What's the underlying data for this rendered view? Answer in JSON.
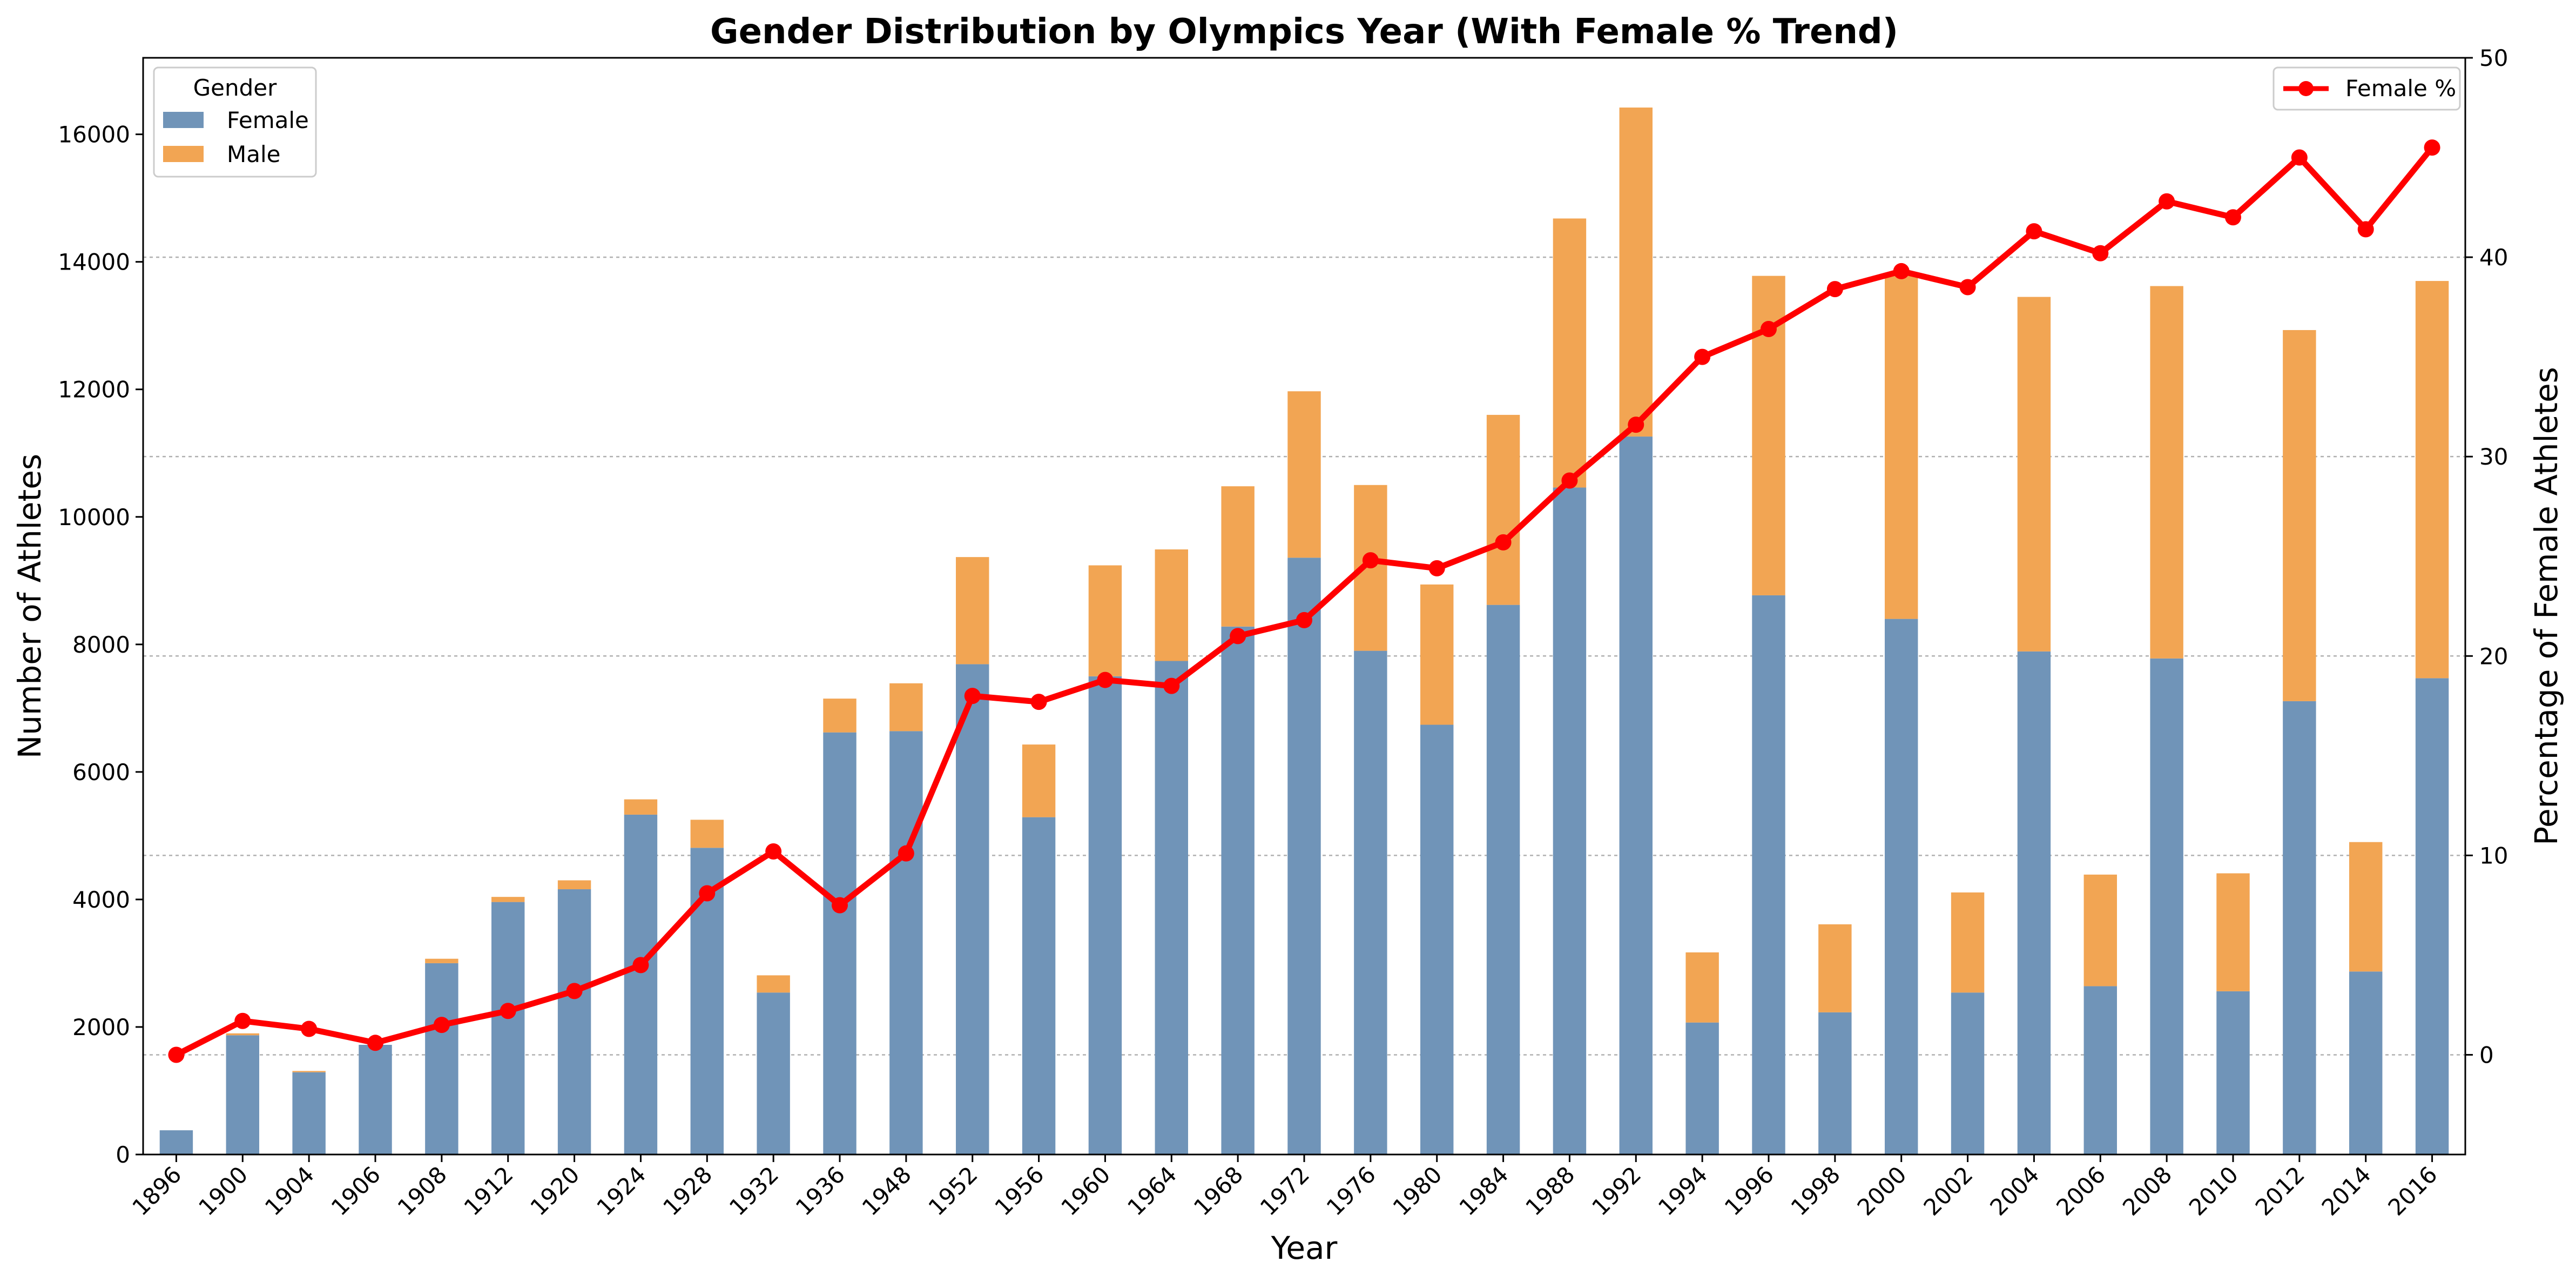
{
  "chart_data": {
    "type": "bar",
    "title": "Gender Distribution by Olympics Year (With Female % Trend)",
    "xlabel": "Year",
    "ylabel": "Number of Athletes",
    "y2label": "Percentage of Female Athletes",
    "ylim": [
      0,
      17200
    ],
    "y2lim": [
      -5,
      50
    ],
    "yticks": [
      0,
      2000,
      4000,
      6000,
      8000,
      10000,
      12000,
      14000,
      16000
    ],
    "y2ticks": [
      0,
      10,
      20,
      30,
      40,
      50
    ],
    "grid": true,
    "categories": [
      "1896",
      "1900",
      "1904",
      "1906",
      "1908",
      "1912",
      "1920",
      "1924",
      "1928",
      "1932",
      "1936",
      "1948",
      "1952",
      "1956",
      "1960",
      "1964",
      "1968",
      "1972",
      "1976",
      "1980",
      "1984",
      "1988",
      "1992",
      "1994",
      "1996",
      "1998",
      "2000",
      "2002",
      "2004",
      "2006",
      "2008",
      "2010",
      "2012",
      "2014",
      "2016"
    ],
    "series": [
      {
        "name": "Female",
        "stack": "gender",
        "color": "#7094b8",
        "values": [
          380,
          1870,
          1290,
          1720,
          3000,
          3960,
          4160,
          5330,
          4810,
          2540,
          6620,
          6640,
          7690,
          5290,
          7500,
          7740,
          8280,
          9360,
          7900,
          6740,
          8620,
          10460,
          11260,
          2070,
          8770,
          2230,
          8400,
          2540,
          7890,
          2640,
          7780,
          2560,
          7110,
          2870,
          7470
        ]
      },
      {
        "name": "Male",
        "stack": "gender",
        "color": "#f2a553",
        "values": [
          0,
          30,
          20,
          0,
          70,
          80,
          140,
          240,
          440,
          270,
          530,
          750,
          1680,
          1140,
          1740,
          1750,
          2200,
          2610,
          2600,
          2200,
          2980,
          4220,
          5160,
          1100,
          5010,
          1380,
          5420,
          1570,
          5560,
          1750,
          5840,
          1850,
          5820,
          2030,
          6230
        ]
      },
      {
        "name": "Female %",
        "type": "line",
        "axis": "right",
        "color": "#ff0000",
        "values": [
          0.0,
          1.7,
          1.3,
          0.6,
          1.5,
          2.2,
          3.2,
          4.5,
          8.1,
          10.2,
          7.5,
          10.1,
          18.0,
          17.7,
          18.8,
          18.5,
          21.0,
          21.8,
          24.8,
          24.4,
          25.7,
          28.8,
          31.6,
          35.0,
          36.4,
          38.4,
          39.3,
          38.5,
          41.3,
          40.2,
          42.8,
          42.0,
          45.0,
          41.4,
          45.5
        ]
      }
    ],
    "legends": [
      {
        "title": "Gender",
        "placement": "top-left",
        "entries": [
          "Female",
          "Male"
        ]
      },
      {
        "title": "",
        "placement": "top-right",
        "entries": [
          "Female %"
        ]
      }
    ]
  }
}
